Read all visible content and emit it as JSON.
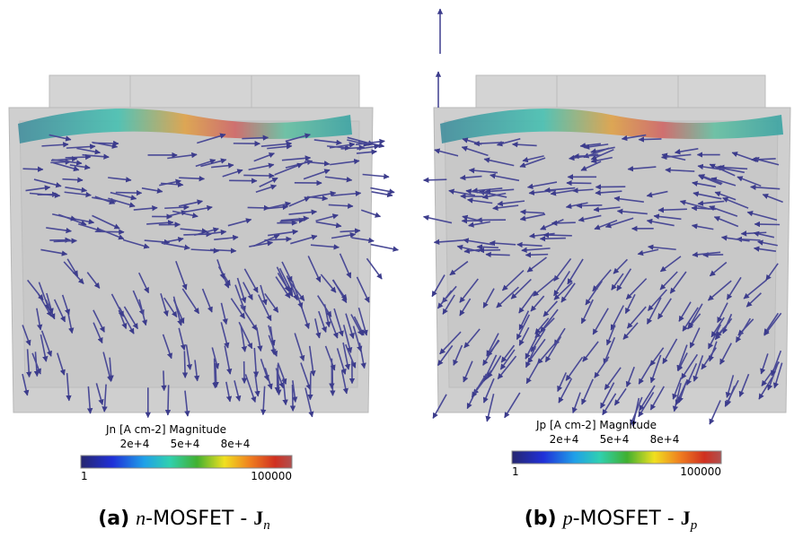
{
  "panels": [
    {
      "colorbar": {
        "title": "Jn [A cm-2] Magnitude",
        "ticks": [
          "2e+4",
          "5e+4",
          "8e+4"
        ],
        "min": "1",
        "max": "100000"
      },
      "caption": {
        "label": "(a)",
        "variable": "n",
        "text": "-MOSFET - ",
        "symbol": "J",
        "subscript": "n"
      }
    },
    {
      "colorbar": {
        "title": "Jp [A cm-2] Magnitude",
        "ticks": [
          "2e+4",
          "5e+4",
          "8e+4"
        ],
        "min": "1",
        "max": "100000"
      },
      "caption": {
        "label": "(b)",
        "variable": "p",
        "text": "-MOSFET - ",
        "symbol": "J",
        "subscript": "p"
      }
    }
  ]
}
